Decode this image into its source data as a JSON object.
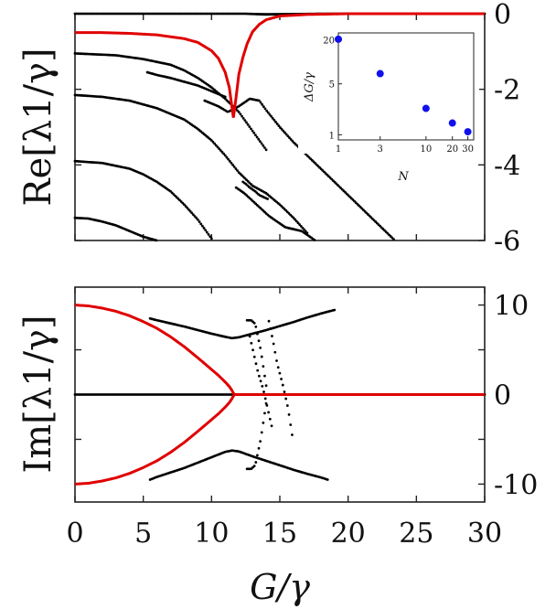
{
  "chart_data": [
    {
      "panel": "top",
      "type": "scatter",
      "ylabel": "Re[λ1/γ]",
      "xlim": [
        0,
        30
      ],
      "ylim": [
        -6,
        0
      ],
      "yticks": [
        0,
        -2,
        -4,
        -6
      ],
      "ytick_labels": [
        "0",
        "-2",
        "-4",
        "-6"
      ],
      "red_curve": {
        "x": [
          0,
          2,
          4,
          6,
          8,
          9,
          10,
          10.5,
          11,
          11.3,
          11.6,
          11.8,
          12.0,
          12.3,
          12.6,
          13.0,
          13.5,
          14.0,
          15.0,
          17.0,
          20.0,
          30.0
        ],
        "y": [
          -0.5,
          -0.5,
          -0.52,
          -0.56,
          -0.66,
          -0.76,
          -0.98,
          -1.18,
          -1.55,
          -1.95,
          -2.75,
          -2.2,
          -1.6,
          -1.15,
          -0.8,
          -0.48,
          -0.28,
          -0.16,
          -0.06,
          -0.02,
          0,
          0
        ]
      },
      "dotted_branches": [
        {
          "x": [
            0,
            4,
            6,
            8,
            10,
            11.5,
            12.5,
            14,
            16,
            18,
            20,
            22,
            24,
            26,
            30
          ],
          "y": [
            0,
            0,
            0,
            0,
            0,
            0,
            0,
            -0.02,
            -0.01,
            0,
            0,
            0,
            0,
            0,
            0
          ]
        },
        {
          "x": [
            0,
            3,
            5,
            7,
            8,
            9,
            10,
            11,
            12,
            13,
            14
          ],
          "y": [
            -1.05,
            -1.1,
            -1.2,
            -1.35,
            -1.5,
            -1.7,
            -1.95,
            -2.25,
            -2.6,
            -3.1,
            -3.6
          ]
        },
        {
          "x": [
            5.3,
            6,
            7,
            8,
            9,
            10,
            11
          ],
          "y": [
            -1.55,
            -1.62,
            -1.7,
            -1.8,
            -1.9,
            -2.05,
            -2.2
          ]
        },
        {
          "x": [
            9.5,
            10.5,
            11.2,
            12,
            12.8,
            13.5,
            14,
            15,
            16,
            17,
            18,
            19,
            20,
            21,
            22,
            23,
            24
          ],
          "y": [
            -2.3,
            -2.45,
            -2.6,
            -2.45,
            -2.25,
            -2.3,
            -2.55,
            -3.0,
            -3.4,
            -3.75,
            -4.1,
            -4.45,
            -4.8,
            -5.15,
            -5.5,
            -5.85,
            -6.2
          ]
        },
        {
          "x": [
            0,
            2,
            4,
            6,
            8,
            9,
            10,
            11,
            12,
            13,
            14,
            15,
            16,
            17
          ],
          "y": [
            -2.15,
            -2.2,
            -2.3,
            -2.5,
            -2.8,
            -3.05,
            -3.35,
            -3.75,
            -4.2,
            -4.55,
            -4.75,
            -5.05,
            -5.4,
            -5.8
          ]
        },
        {
          "x": [
            0,
            2,
            4,
            5,
            6,
            7,
            8,
            9,
            10
          ],
          "y": [
            -3.9,
            -3.95,
            -4.1,
            -4.25,
            -4.45,
            -4.7,
            -5.05,
            -5.45,
            -5.95
          ]
        },
        {
          "x": [
            0,
            1,
            2,
            3,
            4,
            5,
            6,
            7,
            7.5
          ],
          "y": [
            -5.4,
            -5.42,
            -5.5,
            -5.6,
            -5.75,
            -5.9,
            -6.0,
            -6.1,
            -6.2
          ]
        },
        {
          "x": [
            11.8,
            12.4,
            13,
            13.6,
            14.2,
            14.8,
            15.4,
            16,
            16.6,
            17.2,
            17.8,
            18.2
          ],
          "y": [
            -4.6,
            -4.75,
            -4.95,
            -5.15,
            -5.35,
            -5.5,
            -5.65,
            -5.7,
            -5.75,
            -5.9,
            -6.05,
            -6.2
          ]
        },
        {
          "x": [
            12.3,
            12.5,
            12.8,
            13.2,
            13.5,
            13.8,
            14.1
          ],
          "y": [
            -4.45,
            -4.5,
            -4.6,
            -4.7,
            -4.8,
            -4.85,
            -4.9
          ]
        }
      ],
      "inset": {
        "type": "scatter",
        "xscale": "log",
        "yscale": "log",
        "xlabel": "N",
        "ylabel": "ΔG/γ",
        "xlim": [
          1,
          35
        ],
        "ylim": [
          0.85,
          25
        ],
        "xticks": [
          1,
          3,
          10,
          20,
          30
        ],
        "xtick_labels": [
          "1",
          "3",
          "10",
          "20",
          "30"
        ],
        "yticks": [
          1,
          5,
          20
        ],
        "ytick_labels": [
          "1",
          "5",
          "20"
        ],
        "points": {
          "x": [
            1,
            3,
            10,
            20,
            30
          ],
          "y": [
            20.5,
            6.9,
            2.3,
            1.45,
            1.1
          ]
        }
      }
    },
    {
      "panel": "bottom",
      "type": "scatter",
      "ylabel": "Im[λ1/γ]",
      "xlabel": "G/γ",
      "xlim": [
        0,
        30
      ],
      "ylim": [
        -12,
        12
      ],
      "yticks": [
        10,
        0,
        -10
      ],
      "ytick_labels": [
        "10",
        "0",
        "-10"
      ],
      "xticks": [
        0,
        5,
        10,
        15,
        20,
        25,
        30
      ],
      "xtick_labels": [
        "0",
        "5",
        "10",
        "15",
        "20",
        "25",
        "30"
      ],
      "red_curve_upper": {
        "x": [
          0,
          1,
          2,
          3,
          4,
          5,
          6,
          7,
          8,
          9,
          10,
          10.5,
          11,
          11.3,
          11.5,
          11.6,
          11.7,
          12,
          30
        ],
        "y": [
          10,
          9.9,
          9.65,
          9.3,
          8.8,
          8.15,
          7.4,
          6.45,
          5.35,
          4.1,
          2.8,
          2.15,
          1.4,
          0.9,
          0.45,
          0.15,
          0,
          0,
          0
        ]
      },
      "red_curve_lower": {
        "x": [
          0,
          1,
          2,
          3,
          4,
          5,
          6,
          7,
          8,
          9,
          10,
          10.5,
          11,
          11.3,
          11.5,
          11.6,
          11.7
        ],
        "y": [
          -10,
          -9.9,
          -9.65,
          -9.3,
          -8.8,
          -8.15,
          -7.4,
          -6.45,
          -5.35,
          -4.1,
          -2.8,
          -2.15,
          -1.4,
          -0.9,
          -0.45,
          -0.15,
          0
        ]
      },
      "dotted_branches": [
        {
          "x": [
            5.5,
            6,
            7,
            8,
            9,
            10,
            11,
            11.5,
            12,
            13,
            14,
            15,
            16,
            17,
            18,
            19
          ],
          "y": [
            8.5,
            8.3,
            7.95,
            7.6,
            7.2,
            6.8,
            6.45,
            6.3,
            6.4,
            6.8,
            7.2,
            7.65,
            8.1,
            8.6,
            9.05,
            9.45
          ]
        },
        {
          "x": [
            5.5,
            6,
            7,
            8,
            9,
            10,
            11,
            11.5,
            12,
            13,
            14,
            15,
            16,
            17,
            18,
            18.5
          ],
          "y": [
            -9.5,
            -9.2,
            -8.7,
            -8.2,
            -7.6,
            -7.0,
            -6.4,
            -6.25,
            -6.35,
            -6.9,
            -7.4,
            -7.9,
            -8.4,
            -8.85,
            -9.25,
            -9.5
          ]
        },
        {
          "x": [
            12.8,
            13.1,
            13.4,
            13.8,
            14.1,
            14.4
          ],
          "y": [
            6.5,
            4.5,
            2.5,
            0.5,
            -1.5,
            -3.5
          ]
        },
        {
          "x": [
            14.2,
            14.5,
            14.8,
            15.2,
            15.6,
            15.9
          ],
          "y": [
            8.2,
            6.0,
            3.5,
            1.2,
            -1.5,
            -4.5
          ]
        },
        {
          "x": [
            12.6,
            12.9,
            13.2,
            13.6,
            14.0
          ],
          "y": [
            8.3,
            8.3,
            7.9,
            5.0,
            1.0
          ]
        },
        {
          "x": [
            12.6,
            12.9,
            13.2,
            13.6,
            14.0
          ],
          "y": [
            -8.3,
            -8.3,
            -7.9,
            -5.0,
            -1.0
          ]
        }
      ]
    }
  ]
}
